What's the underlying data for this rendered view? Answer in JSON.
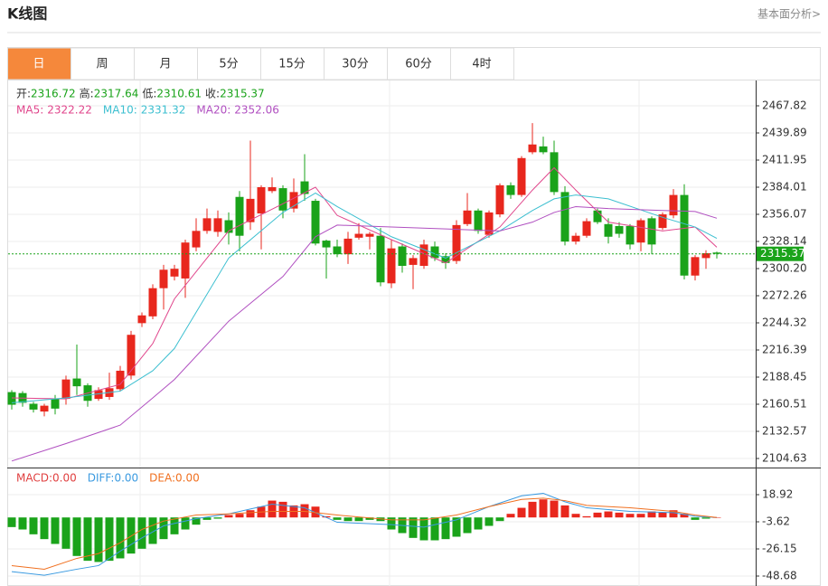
{
  "chart_data": {
    "type": "candlestick",
    "title": "K线图",
    "link": "基本面分析>",
    "tabs": [
      "日",
      "周",
      "月",
      "5分",
      "15分",
      "30分",
      "60分",
      "4时"
    ],
    "active_tab": 0,
    "ohlc_labels": [
      "开:",
      "高:",
      "低:",
      "收:"
    ],
    "colors": {
      "up": "#e8271d",
      "down": "#1aa31a"
    },
    "candles": {
      "open": [
        2173,
        2172,
        2161,
        2153,
        2166,
        2166,
        2187,
        2180,
        2166,
        2168,
        2176,
        2190,
        2244,
        2251,
        2280,
        2292,
        2290,
        2322,
        2339,
        2338,
        2350,
        2374,
        2348,
        2357,
        2380,
        2383,
        2362,
        2390,
        2370,
        2329,
        2323,
        2315,
        2332,
        2333,
        2334,
        2285,
        2323,
        2304,
        2303,
        2323,
        2313,
        2308,
        2346,
        2360,
        2335,
        2356,
        2386,
        2376,
        2420,
        2426,
        2420,
        2379,
        2328,
        2334,
        2360,
        2346,
        2344,
        2344,
        2327,
        2352,
        2342,
        2355,
        2376,
        2293,
        2311,
        2316.72
      ],
      "high": [
        2175,
        2174,
        2163,
        2161,
        2170,
        2190,
        2222,
        2182,
        2178,
        2193,
        2200,
        2236,
        2255,
        2284,
        2304,
        2304,
        2330,
        2352,
        2362,
        2360,
        2358,
        2380,
        2432,
        2386,
        2394,
        2386,
        2393,
        2418,
        2372,
        2330,
        2330,
        2338,
        2347,
        2338,
        2342,
        2330,
        2326,
        2314,
        2330,
        2328,
        2316,
        2350,
        2378,
        2362,
        2360,
        2388,
        2389,
        2416,
        2450,
        2436,
        2432,
        2385,
        2337,
        2352,
        2362,
        2352,
        2348,
        2346,
        2352,
        2354,
        2358,
        2382,
        2387,
        2314,
        2319,
        2317.64
      ],
      "low": [
        2155,
        2158,
        2152,
        2148,
        2150,
        2160,
        2170,
        2158,
        2164,
        2165,
        2174,
        2186,
        2240,
        2248,
        2258,
        2288,
        2270,
        2318,
        2336,
        2333,
        2325,
        2318,
        2340,
        2320,
        2378,
        2352,
        2358,
        2370,
        2324,
        2290,
        2312,
        2305,
        2330,
        2320,
        2282,
        2280,
        2296,
        2279,
        2300,
        2308,
        2300,
        2305,
        2344,
        2336,
        2332,
        2353,
        2372,
        2374,
        2418,
        2418,
        2376,
        2324,
        2325,
        2332,
        2346,
        2326,
        2332,
        2320,
        2318,
        2315,
        2340,
        2352,
        2289,
        2288,
        2300,
        2310.61
      ],
      "close": [
        2160,
        2162,
        2155,
        2159,
        2156,
        2186,
        2179,
        2164,
        2175,
        2177,
        2195,
        2232,
        2252,
        2280,
        2299,
        2300,
        2327,
        2339,
        2352,
        2352,
        2337,
        2334,
        2372,
        2384,
        2384,
        2360,
        2379,
        2377,
        2326,
        2322,
        2315,
        2331,
        2336,
        2336,
        2286,
        2321,
        2303,
        2311,
        2325,
        2311,
        2306,
        2345,
        2360,
        2339,
        2358,
        2386,
        2376,
        2414,
        2428,
        2420,
        2379,
        2328,
        2334,
        2349,
        2348,
        2333,
        2336,
        2325,
        2350,
        2325,
        2356,
        2376,
        2293,
        2312,
        2316,
        2315.37
      ]
    },
    "ylim": [
      2095.32,
      2492.96
    ],
    "yticks": [
      2467.82,
      2439.89,
      2411.95,
      2384.01,
      2356.07,
      2328.14,
      {
        "value": 2300.2,
        "label": "2300.20"
      },
      2272.26,
      2244.32,
      2216.39,
      2188.45,
      2160.51,
      2132.57,
      2104.63
    ],
    "grid": true,
    "ma_series": [
      {
        "label": "MA5:",
        "color": "#e0468c",
        "x": [
          0,
          5,
          10,
          13,
          15,
          20,
          25,
          28,
          30,
          35,
          40,
          45,
          48,
          50,
          52,
          55,
          60,
          63,
          65
        ],
        "values": [
          2167,
          2166,
          2181,
          2223,
          2269,
          2339,
          2367,
          2384,
          2355,
          2330,
          2306,
          2343,
          2381,
          2404,
          2381,
          2348,
          2339,
          2343,
          2322.22
        ]
      },
      {
        "label": "MA10:",
        "color": "#3cbfd0",
        "x": [
          0,
          5,
          10,
          13,
          15,
          20,
          25,
          28,
          30,
          35,
          40,
          45,
          48,
          50,
          52,
          55,
          60,
          63,
          65
        ],
        "values": [
          2162,
          2167,
          2174,
          2195,
          2218,
          2311,
          2358,
          2378,
          2364,
          2333,
          2311,
          2339,
          2360,
          2372,
          2376,
          2372,
          2353,
          2343,
          2331.32
        ]
      },
      {
        "label": "MA20:",
        "color": "#b04fc0",
        "x": [
          0,
          5,
          10,
          13,
          15,
          20,
          25,
          28,
          30,
          35,
          40,
          45,
          48,
          50,
          52,
          55,
          60,
          63,
          65
        ],
        "values": [
          2102,
          2120,
          2139,
          2167,
          2186,
          2246,
          2292,
          2333,
          2345,
          2343,
          2341,
          2339,
          2348,
          2358,
          2364,
          2362,
          2360,
          2359,
          2352.06
        ]
      }
    ],
    "macd": {
      "hist_label": "MACD:",
      "hist_legend_value": "0.00",
      "hist_color": "#e04040",
      "ylim": [
        -55.44,
        40.71
      ],
      "yticks": [
        18.92,
        -3.62,
        -26.15,
        -48.68
      ],
      "histogram": [
        -8,
        -10,
        -14,
        -18,
        -22,
        -26,
        -32,
        -36,
        -37,
        -36,
        -34,
        -30,
        -26,
        -22,
        -18,
        -14,
        -10,
        -6,
        -2,
        -1,
        2,
        3,
        6,
        9,
        14,
        13,
        10,
        11,
        9,
        1,
        -2,
        -3,
        -3,
        -2,
        -3,
        -10,
        -13,
        -17,
        -19,
        -19,
        -18,
        -16,
        -13,
        -10,
        -7,
        -3,
        3,
        8,
        13,
        15,
        14,
        10,
        3,
        1,
        4,
        5,
        4,
        3,
        3,
        5,
        4,
        6,
        3,
        -2,
        -1,
        0
      ],
      "series": [
        {
          "label": "DIFF:",
          "legend_value": "0.00",
          "color": "#3a9ae0",
          "x": [
            0,
            3,
            6,
            8,
            10,
            12,
            14,
            17,
            20,
            24,
            27,
            30,
            35,
            38,
            41,
            44,
            47,
            49,
            51,
            53,
            57,
            61,
            63,
            65
          ],
          "values": [
            -45,
            -48,
            -43,
            -40,
            -28,
            -17,
            -7,
            -1,
            3,
            11,
            8,
            -4,
            -6,
            -8,
            -2,
            9,
            18,
            20,
            13,
            8,
            5,
            4,
            1,
            0
          ]
        },
        {
          "label": "DEA:",
          "legend_value": "0.00",
          "color": "#f07020",
          "x": [
            0,
            3,
            6,
            8,
            10,
            12,
            14,
            17,
            20,
            24,
            27,
            30,
            35,
            38,
            41,
            44,
            47,
            49,
            51,
            53,
            57,
            61,
            63,
            65
          ],
          "values": [
            -40,
            -43,
            -34,
            -30,
            -21,
            -10,
            -3,
            2,
            3,
            5,
            5,
            2,
            -2,
            -2,
            2,
            9,
            15,
            16,
            14,
            10,
            8,
            5,
            2,
            0
          ]
        }
      ]
    }
  }
}
